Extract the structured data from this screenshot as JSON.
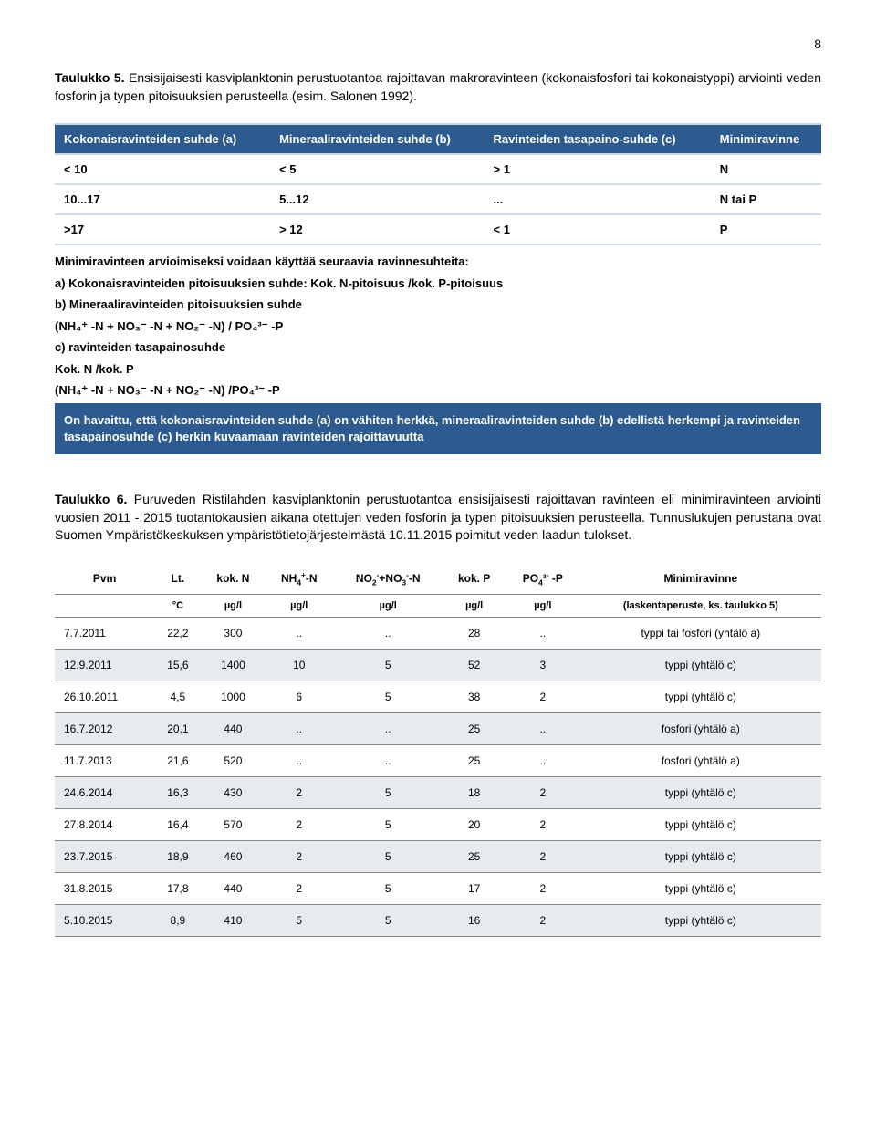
{
  "page_number": "8",
  "caption1_bold": "Taulukko 5.",
  "caption1_text": " Ensisijaisesti kasviplanktonin perustuotantoa rajoittavan makroravinteen (kokonaisfosfori tai kokonaistyppi) arviointi veden fosforin ja typen pitoisuuksien perusteella (esim. Salonen 1992).",
  "ratio_table": {
    "headers": [
      "Kokonaisravinteiden suhde (a)",
      "Mineraaliravinteiden suhde (b)",
      "Ravinteiden tasapaino-suhde (c)",
      "Minimiravinne"
    ],
    "rows": [
      [
        "< 10",
        "< 5",
        "> 1",
        "N"
      ],
      [
        "10...17",
        "5...12",
        "...",
        "N tai P"
      ],
      [
        ">17",
        "> 12",
        "< 1",
        "P"
      ]
    ]
  },
  "notes": {
    "intro": "Minimiravinteen arvioimiseksi voidaan  käyttää seuraavia ravinnesuhteita:",
    "a": "a) Kokonaisravinteiden pitoisuuksien suhde: Kok. N-pitoisuus /kok. P-pitoisuus",
    "b1": "b) Mineraaliravinteiden pitoisuuksien suhde",
    "b2": "(NH₄⁺ -N + NO₃⁻ -N + NO₂⁻ -N) / PO₄³⁻ -P",
    "c": "c) ravinteiden tasapainosuhde",
    "c2": "Kok. N /kok. P",
    "c3": "(NH₄⁺ -N + NO₃⁻ -N + NO₂⁻ -N) /PO₄³⁻ -P"
  },
  "observation": "On havaittu, että kokonaisravinteiden suhde (a) on vähiten herkkä, mineraaliravinteiden suhde (b) edellistä herkempi ja ravinteiden tasapainosuhde (c) herkin kuvaamaan ravinteiden rajoittavuutta",
  "caption2_bold": "Taulukko 6.",
  "caption2_text": " Puruveden Ristilahden kasviplanktonin perustuotantoa ensisijaisesti rajoittavan ravinteen eli minimiravinteen arviointi vuosien 2011 - 2015 tuotantokausien aikana otettujen veden fosforin ja typen pitoisuuksien perusteella. Tunnuslukujen perustana ovat Suomen Ympäristökeskuksen ympäristötietojärjestelmästä 10.11.2015 poimitut veden laadun tulokset.",
  "data_table": {
    "headers": [
      "Pvm",
      "Lt.",
      "kok. N",
      "NH₄⁺-N",
      "NO₂⁻+NO₃⁻-N",
      "kok. P",
      "PO₄³⁻ -P",
      "Minimiravinne"
    ],
    "units": [
      "",
      "°C",
      "µg/l",
      "µg/l",
      "µg/l",
      "µg/l",
      "µg/l",
      "(laskentaperuste, ks. taulukko 5)"
    ],
    "rows": [
      [
        "7.7.2011",
        "22,2",
        "300",
        "..",
        "..",
        "28",
        "..",
        "typpi tai fosfori (yhtälö a)"
      ],
      [
        "12.9.2011",
        "15,6",
        "1400",
        "10",
        "5",
        "52",
        "3",
        "typpi (yhtälö c)"
      ],
      [
        "26.10.2011",
        "4,5",
        "1000",
        "6",
        "5",
        "38",
        "2",
        "typpi (yhtälö c)"
      ],
      [
        "16.7.2012",
        "20,1",
        "440",
        "..",
        "..",
        "25",
        "..",
        "fosfori (yhtälö a)"
      ],
      [
        "11.7.2013",
        "21,6",
        "520",
        "..",
        "..",
        "25",
        "..",
        "fosfori (yhtälö a)"
      ],
      [
        "24.6.2014",
        "16,3",
        "430",
        "2",
        "5",
        "18",
        "2",
        "typpi (yhtälö c)"
      ],
      [
        "27.8.2014",
        "16,4",
        "570",
        "2",
        "5",
        "20",
        "2",
        "typpi (yhtälö c)"
      ],
      [
        "23.7.2015",
        "18,9",
        "460",
        "2",
        "5",
        "25",
        "2",
        "typpi (yhtälö c)"
      ],
      [
        "31.8.2015",
        "17,8",
        "440",
        "2",
        "5",
        "17",
        "2",
        "typpi (yhtälö c)"
      ],
      [
        "5.10.2015",
        "8,9",
        "410",
        "5",
        "5",
        "16",
        "2",
        "typpi (yhtälö c)"
      ]
    ]
  }
}
